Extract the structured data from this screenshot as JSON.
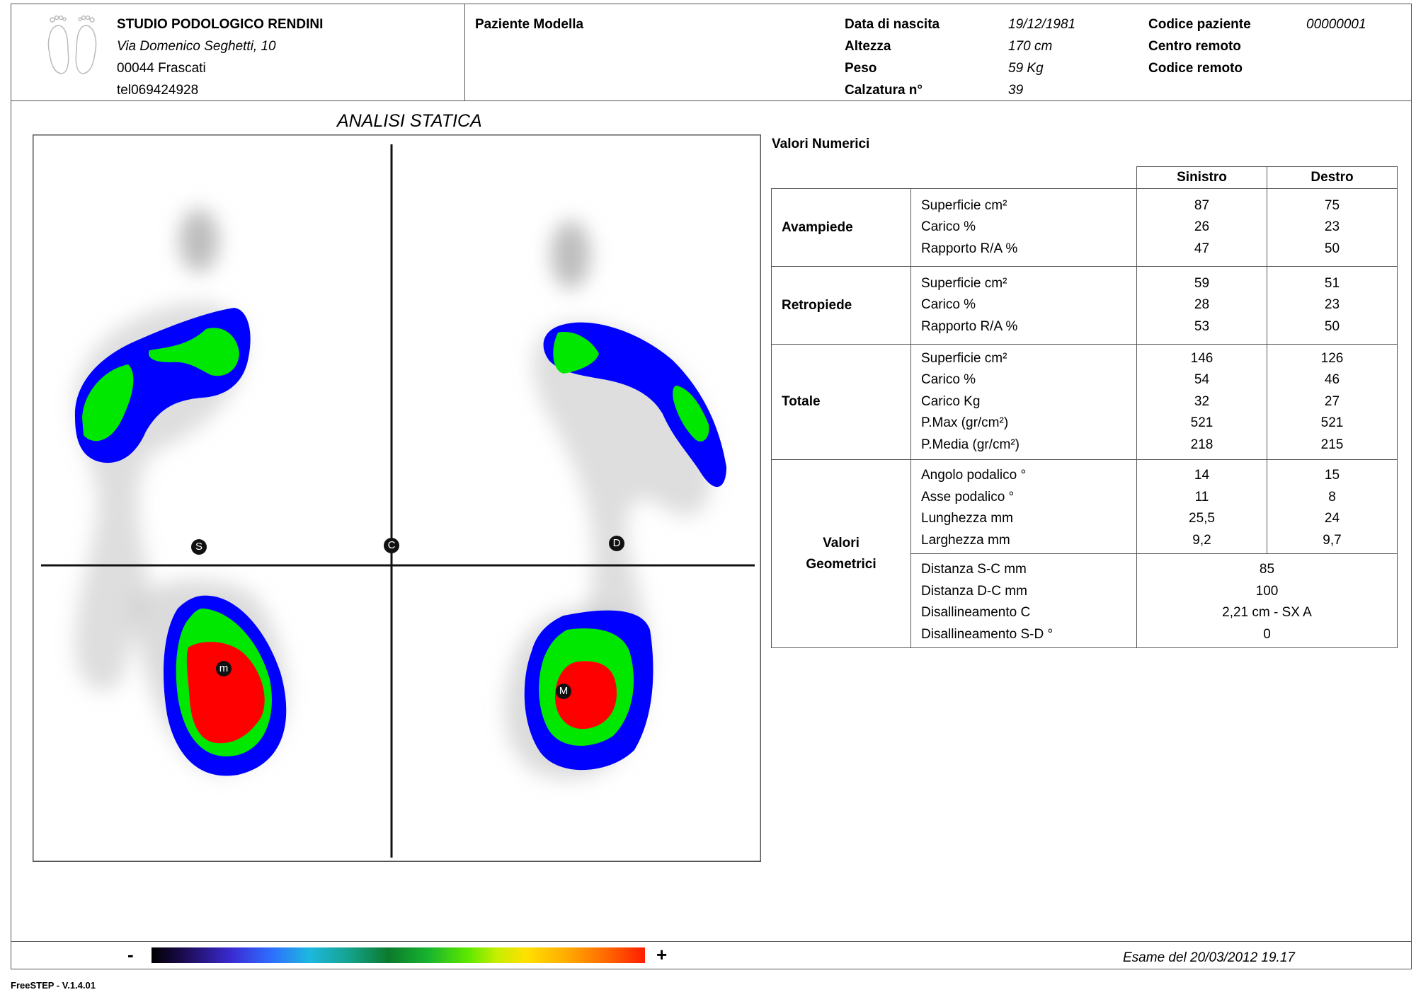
{
  "studio": {
    "name": "STUDIO PODOLOGICO RENDINI",
    "address": "Via Domenico Seghetti, 10",
    "city": "00044 Frascati",
    "phone": "tel069424928"
  },
  "patient": {
    "name": "Paziente Modella",
    "birth_label": "Data di nascita",
    "birth_value": "19/12/1981",
    "height_label": "Altezza",
    "height_value": "170 cm",
    "weight_label": "Peso",
    "weight_value": "59 Kg",
    "shoe_label": "Calzatura n°",
    "shoe_value": "39",
    "code_label": "Codice paziente",
    "code_value": "00000001",
    "remote_center_label": "Centro remoto",
    "remote_code_label": "Codice remoto"
  },
  "analysis": {
    "title": "ANALISI STATICA",
    "markers": {
      "s": "S",
      "c": "C",
      "d": "D",
      "m_left": "m",
      "m_right": "M"
    }
  },
  "values": {
    "title": "Valori Numerici",
    "col_left": "Sinistro",
    "col_right": "Destro",
    "groups": [
      {
        "name": "Avampiede",
        "rows": [
          {
            "label": "Superficie cm²",
            "left": "87",
            "right": "75"
          },
          {
            "label": "Carico %",
            "left": "26",
            "right": "23"
          },
          {
            "label": "Rapporto R/A %",
            "left": "47",
            "right": "50"
          }
        ]
      },
      {
        "name": "Retropiede",
        "rows": [
          {
            "label": "Superficie cm²",
            "left": "59",
            "right": "51"
          },
          {
            "label": "Carico %",
            "left": "28",
            "right": "23"
          },
          {
            "label": "Rapporto R/A %",
            "left": "53",
            "right": "50"
          }
        ]
      },
      {
        "name": "Totale",
        "rows": [
          {
            "label": "Superficie cm²",
            "left": "146",
            "right": "126"
          },
          {
            "label": "Carico %",
            "left": "54",
            "right": "46"
          },
          {
            "label": "Carico Kg",
            "left": "32",
            "right": "27"
          },
          {
            "label": "P.Max (gr/cm²)",
            "left": "521",
            "right": "521"
          },
          {
            "label": "P.Media (gr/cm²)",
            "left": "218",
            "right": "215"
          }
        ]
      },
      {
        "name": "Valori Geometrici",
        "rows": [
          {
            "label": "Angolo podalico °",
            "left": "14",
            "right": "15"
          },
          {
            "label": "Asse podalico °",
            "left": "11",
            "right": "8"
          },
          {
            "label": "Lunghezza mm",
            "left": "25,5",
            "right": "24"
          },
          {
            "label": "Larghezza mm",
            "left": "9,2",
            "right": "9,7"
          }
        ],
        "merged": [
          {
            "label": "Distanza S-C mm",
            "value": "85"
          },
          {
            "label": "Distanza D-C mm",
            "value": "100"
          },
          {
            "label": "Disallineamento C",
            "value": "2,21 cm - SX A"
          },
          {
            "label": "Disallineamento S-D °",
            "value": "0"
          }
        ]
      }
    ]
  },
  "footer": {
    "scale_minus": "-",
    "scale_plus": "+",
    "exam": "Esame del 20/03/2012 19.17",
    "version": "FreeSTEP - V.1.4.01"
  },
  "colors": {
    "low": "#0000ff",
    "mid": "#00ee00",
    "high": "#ff0000",
    "frame": "#555555"
  }
}
